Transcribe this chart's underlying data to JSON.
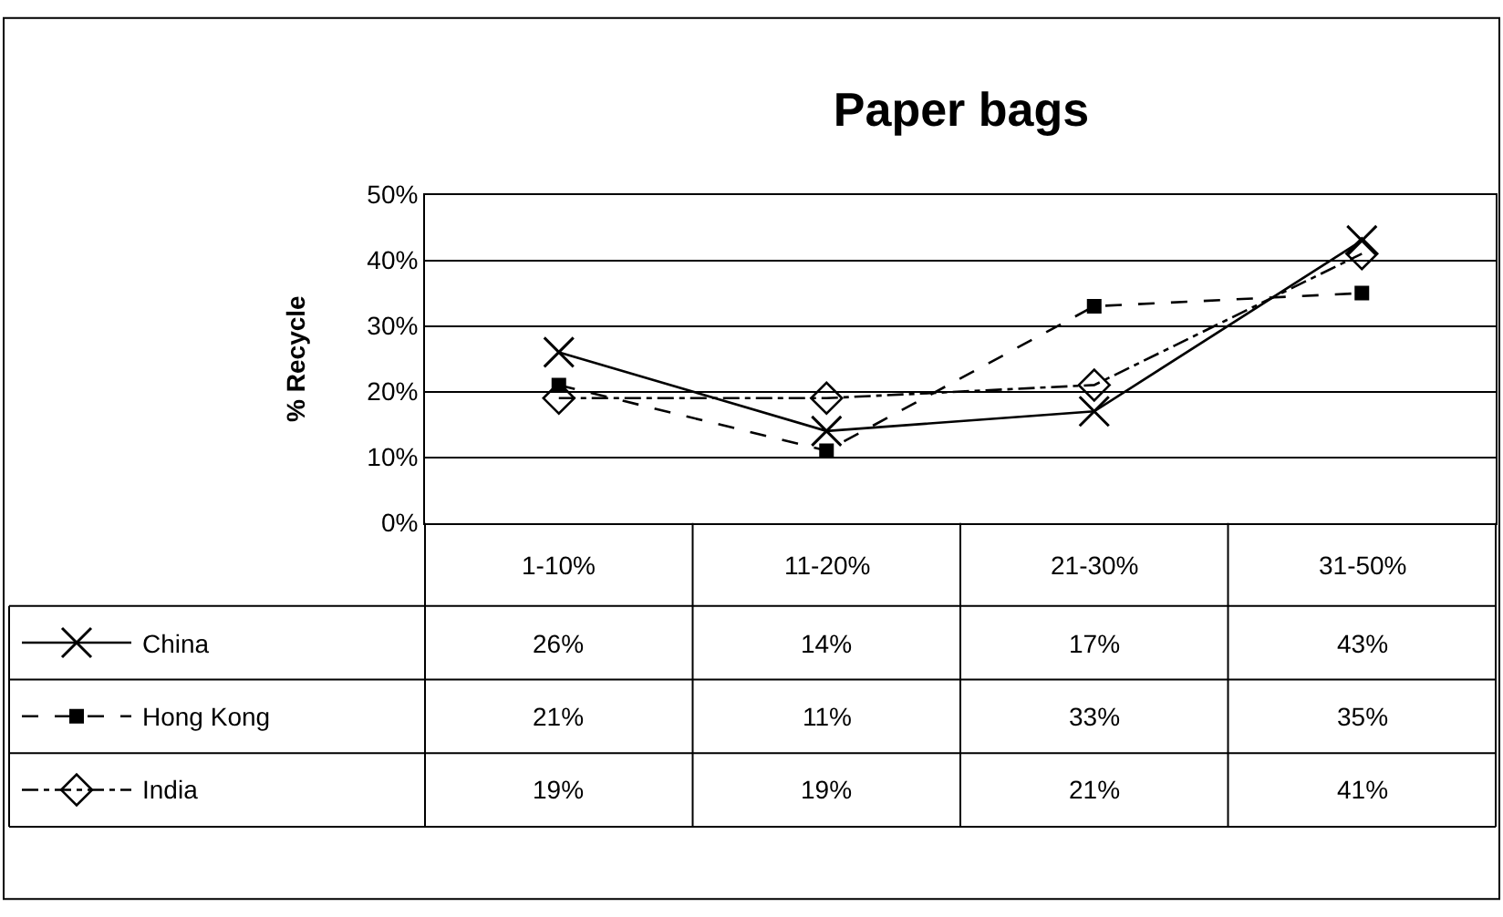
{
  "chart_data": {
    "type": "line",
    "title": "Paper bags",
    "ylabel": "% Recycle",
    "categories": [
      "1-10%",
      "11-20%",
      "21-30%",
      "31-50%"
    ],
    "series": [
      {
        "name": "China",
        "color": "#000000",
        "values": [
          26,
          14,
          17,
          43
        ],
        "value_labels": [
          "26%",
          "14%",
          "17%",
          "43%"
        ],
        "marker": "cross",
        "line_style": "solid"
      },
      {
        "name": "Hong Kong",
        "color": "#000000",
        "values": [
          21,
          11,
          33,
          35
        ],
        "value_labels": [
          "21%",
          "11%",
          "33%",
          "35%"
        ],
        "marker": "square",
        "line_style": "dashed"
      },
      {
        "name": "India",
        "color": "#000000",
        "values": [
          19,
          19,
          21,
          41
        ],
        "value_labels": [
          "19%",
          "19%",
          "21%",
          "41%"
        ],
        "marker": "diamond",
        "line_style": "dashdot"
      }
    ],
    "ylim": [
      0,
      50
    ],
    "yticks": [
      {
        "value": 0,
        "label": "0%"
      },
      {
        "value": 10,
        "label": "10%"
      },
      {
        "value": 20,
        "label": "20%"
      },
      {
        "value": 30,
        "label": "30%"
      },
      {
        "value": 40,
        "label": "40%"
      },
      {
        "value": 50,
        "label": "50%"
      }
    ],
    "grid": "y",
    "legend": "bottom left"
  }
}
